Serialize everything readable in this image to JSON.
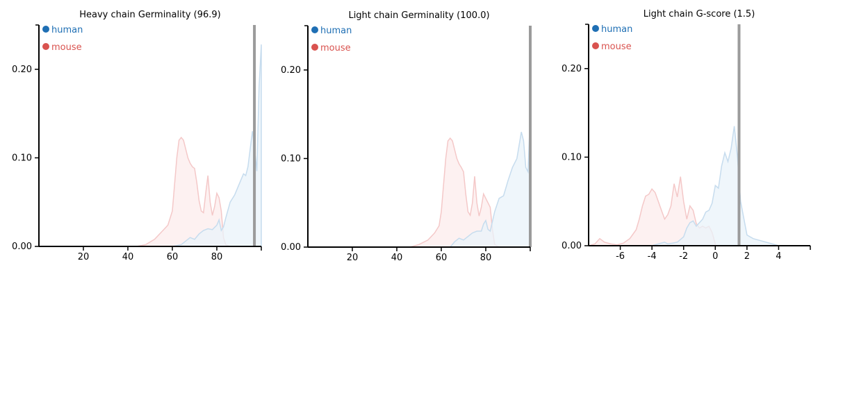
{
  "colors": {
    "human": "#1f6fb4",
    "mouse": "#d9534f",
    "human_fill": "#eaf3fa",
    "human_stroke": "#c6dcee",
    "mouse_fill": "#fdeeee",
    "mouse_stroke": "#f4c8c8",
    "marker": "#9b9b9b"
  },
  "chart_data": [
    {
      "type": "area",
      "title": "Heavy chain Germinality (96.9)",
      "xlabel": "",
      "ylabel": "",
      "xlim": [
        0,
        100
      ],
      "ylim": [
        0,
        0.25
      ],
      "xticks": [
        20,
        40,
        60,
        80
      ],
      "yticks": [
        0.0,
        0.1,
        0.2
      ],
      "ytick_labels": [
        "0.00",
        "0.10",
        "0.20"
      ],
      "marker_x": 96.9,
      "legend": [
        "human",
        "mouse"
      ],
      "legend_position": "top-left",
      "series": [
        {
          "name": "human",
          "x": [
            60,
            64,
            66,
            68,
            70,
            72,
            74,
            76,
            78,
            80,
            81,
            82,
            83,
            84,
            86,
            88,
            90,
            92,
            93,
            94,
            95,
            96,
            97,
            98,
            99,
            100
          ],
          "y": [
            0,
            0.002,
            0.006,
            0.01,
            0.008,
            0.014,
            0.018,
            0.02,
            0.019,
            0.024,
            0.03,
            0.018,
            0.022,
            0.032,
            0.05,
            0.058,
            0.07,
            0.082,
            0.08,
            0.09,
            0.11,
            0.13,
            0.11,
            0.085,
            0.18,
            0.228
          ]
        },
        {
          "name": "mouse",
          "x": [
            44,
            48,
            52,
            55,
            58,
            60,
            61,
            62,
            63,
            64,
            65,
            66,
            67,
            68,
            69,
            70,
            71,
            72,
            73,
            74,
            75,
            76,
            77,
            78,
            79,
            80,
            81,
            82,
            83,
            84,
            86
          ],
          "y": [
            0,
            0.002,
            0.008,
            0.016,
            0.024,
            0.04,
            0.07,
            0.1,
            0.12,
            0.123,
            0.12,
            0.11,
            0.1,
            0.094,
            0.09,
            0.088,
            0.072,
            0.052,
            0.04,
            0.038,
            0.06,
            0.08,
            0.05,
            0.035,
            0.045,
            0.06,
            0.055,
            0.04,
            0.01,
            0.002,
            0
          ]
        }
      ]
    },
    {
      "type": "area",
      "title": "Light chain Germinality (100.0)",
      "xlabel": "",
      "ylabel": "",
      "xlim": [
        0,
        100
      ],
      "ylim": [
        0,
        0.25
      ],
      "xticks": [
        20,
        40,
        60,
        80
      ],
      "yticks": [
        0.0,
        0.1,
        0.2
      ],
      "ytick_labels": [
        "0.00",
        "0.10",
        "0.20"
      ],
      "marker_x": 100.0,
      "legend": [
        "human",
        "mouse"
      ],
      "legend_position": "top-left",
      "series": [
        {
          "name": "human",
          "x": [
            64,
            66,
            68,
            70,
            72,
            74,
            76,
            78,
            79,
            80,
            81,
            82,
            84,
            86,
            88,
            90,
            92,
            94,
            96,
            97,
            98,
            99,
            100
          ],
          "y": [
            0,
            0.006,
            0.01,
            0.008,
            0.012,
            0.016,
            0.018,
            0.018,
            0.026,
            0.03,
            0.02,
            0.018,
            0.04,
            0.055,
            0.058,
            0.075,
            0.09,
            0.1,
            0.13,
            0.12,
            0.09,
            0.085,
            0.15
          ]
        },
        {
          "name": "mouse",
          "x": [
            46,
            50,
            54,
            57,
            59,
            60,
            61,
            62,
            63,
            64,
            65,
            66,
            67,
            68,
            69,
            70,
            71,
            72,
            73,
            74,
            75,
            76,
            77,
            78,
            79,
            80,
            81,
            82,
            83,
            84,
            86
          ],
          "y": [
            0,
            0.003,
            0.008,
            0.016,
            0.024,
            0.04,
            0.07,
            0.1,
            0.12,
            0.123,
            0.12,
            0.11,
            0.1,
            0.094,
            0.09,
            0.085,
            0.06,
            0.04,
            0.036,
            0.05,
            0.08,
            0.05,
            0.035,
            0.045,
            0.06,
            0.055,
            0.05,
            0.045,
            0.02,
            0.003,
            0
          ]
        }
      ]
    },
    {
      "type": "area",
      "title": "Light chain G-score (1.5)",
      "xlabel": "",
      "ylabel": "",
      "xlim": [
        -8,
        6
      ],
      "ylim": [
        0,
        0.25
      ],
      "xticks": [
        -6,
        -4,
        -2,
        0,
        2,
        4
      ],
      "yticks": [
        0.0,
        0.1,
        0.2
      ],
      "ytick_labels": [
        "0.00",
        "0.10",
        "0.20"
      ],
      "marker_x": 1.5,
      "legend": [
        "human",
        "mouse"
      ],
      "legend_position": "top-left",
      "series": [
        {
          "name": "human",
          "x": [
            -4,
            -3.6,
            -3.2,
            -3,
            -2.7,
            -2.4,
            -2,
            -1.8,
            -1.6,
            -1.4,
            -1.2,
            -1,
            -0.8,
            -0.6,
            -0.4,
            -0.2,
            0,
            0.2,
            0.4,
            0.6,
            0.8,
            1,
            1.2,
            1.4,
            1.6,
            2,
            2.4,
            2.8,
            3.2,
            3.6,
            4
          ],
          "y": [
            0,
            0.002,
            0.004,
            0.002,
            0.003,
            0.004,
            0.01,
            0.02,
            0.026,
            0.028,
            0.022,
            0.026,
            0.03,
            0.038,
            0.04,
            0.048,
            0.068,
            0.065,
            0.09,
            0.105,
            0.095,
            0.11,
            0.135,
            0.1,
            0.05,
            0.012,
            0.008,
            0.006,
            0.004,
            0.002,
            0
          ]
        },
        {
          "name": "mouse",
          "x": [
            -8,
            -7.6,
            -7.3,
            -7,
            -6.6,
            -6.2,
            -5.8,
            -5.4,
            -5,
            -4.8,
            -4.6,
            -4.4,
            -4.2,
            -4,
            -3.8,
            -3.6,
            -3.4,
            -3.2,
            -3,
            -2.8,
            -2.6,
            -2.4,
            -2.2,
            -2,
            -1.8,
            -1.6,
            -1.4,
            -1.2,
            -1,
            -0.8,
            -0.6,
            -0.4,
            -0.2,
            0
          ],
          "y": [
            0,
            0.002,
            0.008,
            0.004,
            0.002,
            0.001,
            0.003,
            0.008,
            0.018,
            0.03,
            0.045,
            0.056,
            0.058,
            0.064,
            0.06,
            0.05,
            0.04,
            0.03,
            0.035,
            0.045,
            0.07,
            0.055,
            0.078,
            0.05,
            0.03,
            0.045,
            0.04,
            0.025,
            0.02,
            0.022,
            0.02,
            0.022,
            0.015,
            0.002
          ]
        }
      ]
    }
  ]
}
